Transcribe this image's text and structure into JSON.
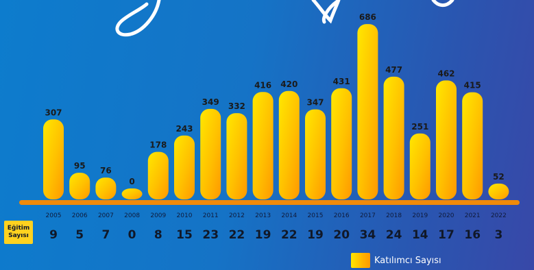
{
  "chart_data": {
    "type": "bar",
    "categories": [
      "2005",
      "2006",
      "2007",
      "2008",
      "2009",
      "2010",
      "2011",
      "2012",
      "2013",
      "2014",
      "2015",
      "2016",
      "2017",
      "2018",
      "2019",
      "2020",
      "2021",
      "2022"
    ],
    "series": [
      {
        "name": "Katılımcı Sayısı",
        "values": [
          307,
          95,
          76,
          0,
          178,
          243,
          349,
          332,
          416,
          420,
          347,
          431,
          686,
          477,
          251,
          462,
          415,
          52
        ]
      }
    ],
    "secondary_row": {
      "label": "Eğitim Sayısı",
      "label_lines": [
        "Eğitim",
        "Sayısı"
      ],
      "values": [
        9,
        5,
        7,
        0,
        8,
        15,
        23,
        22,
        19,
        22,
        19,
        20,
        34,
        24,
        14,
        17,
        16,
        3
      ]
    },
    "ylim": [
      0,
      700
    ],
    "legend": {
      "position": "bottom-right",
      "label": "Katılımcı Sayısı"
    },
    "grid": false,
    "colors": {
      "bar_top": "#ffe600",
      "bar_bottom": "#ff9f00",
      "baseline": "#f08a0a",
      "bg_start": "#0d7ccd",
      "bg_end": "#3848a8",
      "script_decoration": "#ffffff"
    }
  }
}
